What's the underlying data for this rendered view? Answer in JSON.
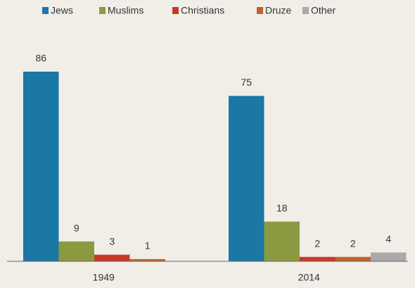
{
  "chart_data": {
    "type": "bar",
    "categories": [
      "1949",
      "2014"
    ],
    "series": [
      {
        "name": "Jews",
        "color": "#1b77a6",
        "values": [
          86,
          75
        ]
      },
      {
        "name": "Muslims",
        "color": "#8b9a40",
        "values": [
          9,
          18
        ]
      },
      {
        "name": "Christians",
        "color": "#c9382a",
        "values": [
          3,
          2
        ]
      },
      {
        "name": "Druze",
        "color": "#c0612b",
        "values": [
          1,
          2
        ]
      },
      {
        "name": "Other",
        "color": "#a9a9a9",
        "values": [
          null,
          4
        ]
      }
    ],
    "legend": "top"
  }
}
